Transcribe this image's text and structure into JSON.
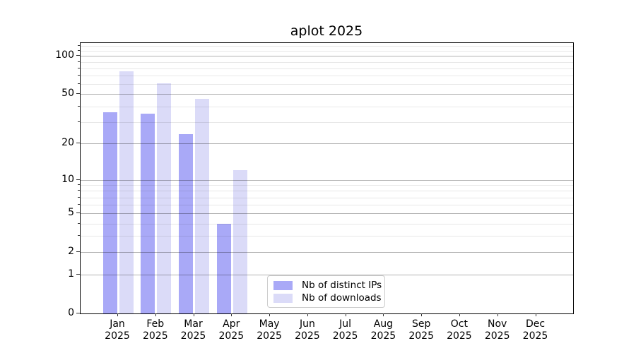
{
  "title": "aplot 2025",
  "chart_data": {
    "type": "bar",
    "title": "aplot 2025",
    "subtitle": "",
    "categories": [
      "Jan",
      "Feb",
      "Mar",
      "Apr",
      "May",
      "Jun",
      "Jul",
      "Aug",
      "Sep",
      "Oct",
      "Nov",
      "Dec"
    ],
    "category_year": "2025",
    "series": [
      {
        "name": "Nb of distinct IPs",
        "color": "#a9a9f7",
        "values": [
          36,
          35,
          24,
          4,
          0,
          0,
          0,
          0,
          0,
          0,
          0,
          0
        ]
      },
      {
        "name": "Nb of downloads",
        "color": "#dbdbf8",
        "values": [
          76,
          61,
          46,
          12,
          0,
          0,
          0,
          0,
          0,
          0,
          0,
          0
        ]
      }
    ],
    "xlabel": "",
    "ylabel": "",
    "y_scale": "log10(1+value)",
    "ylim": [
      0,
      128
    ],
    "y_major_ticks": [
      0,
      1,
      2,
      5,
      10,
      20,
      50,
      100
    ],
    "y_minor_gridlines": [
      3,
      4,
      6,
      7,
      8,
      9,
      30,
      40,
      60,
      70,
      80,
      90,
      110,
      120
    ],
    "grid": "both, drawn over bars",
    "legend_position": "inside axes, lower center-left",
    "colors": {
      "distinct_ips_bar": "#a9a9f7",
      "downloads_bar": "#dbdbf8",
      "major_grid": "#b0b0b0",
      "minor_grid": "#e8e8e8",
      "spine": "#000000",
      "background": "#ffffff"
    }
  }
}
